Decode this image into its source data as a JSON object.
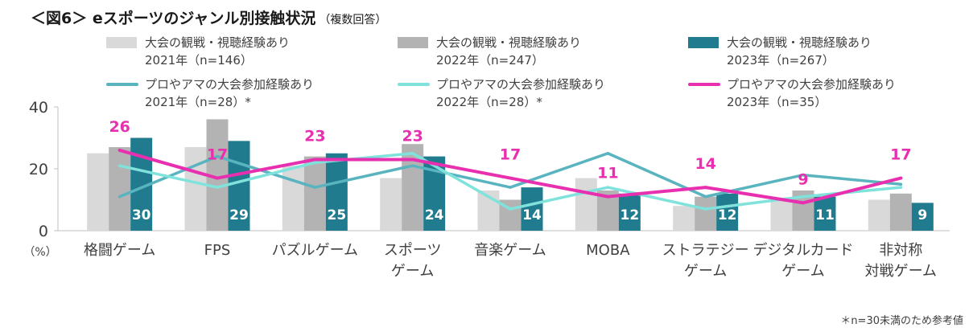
{
  "title": "＜図6＞ eスポーツのジャンル別接触状況",
  "title_note": "（複数回答）",
  "footnote": "＊n=30未満のため参考値",
  "chart_data": {
    "type": "bar+line",
    "ylabel": "（%）",
    "ylim": [
      0,
      40
    ],
    "yticks": [
      0,
      20,
      40
    ],
    "categories": [
      [
        "格闘ゲーム"
      ],
      [
        "FPS"
      ],
      [
        "パズルゲーム"
      ],
      [
        "スポーツ",
        "ゲーム"
      ],
      [
        "音楽ゲーム"
      ],
      [
        "MOBA"
      ],
      [
        "ストラテジー",
        "ゲーム"
      ],
      [
        "デジタルカード",
        "ゲーム"
      ],
      [
        "非対称",
        "対戦ゲーム"
      ]
    ],
    "bar_series": [
      {
        "name": "大会の観戦・視聴経験あり",
        "year": "2021年（n=146）",
        "color": "#d9d9d9",
        "values": [
          25,
          27,
          21,
          17,
          13,
          17,
          8,
          10,
          10
        ],
        "labels": [
          null,
          null,
          null,
          null,
          null,
          null,
          null,
          null,
          null
        ]
      },
      {
        "name": "大会の観戦・視聴経験あり",
        "year": "2022年（n=247）",
        "color": "#b3b3b3",
        "values": [
          27,
          36,
          24,
          28,
          10,
          13,
          11,
          13,
          12
        ],
        "labels": [
          null,
          null,
          null,
          null,
          null,
          null,
          null,
          null,
          null
        ]
      },
      {
        "name": "大会の観戦・視聴経験あり",
        "year": "2023年（n=267）",
        "color": "#217b8f",
        "values": [
          30,
          29,
          25,
          24,
          14,
          12,
          12,
          11,
          9
        ],
        "labels": [
          "30",
          "29",
          "25",
          "24",
          "14",
          "12",
          "12",
          "11",
          "9"
        ]
      }
    ],
    "line_series": [
      {
        "name": "プロやアマの大会参加経験あり",
        "year": "2021年（n=28）*",
        "color": "#5ab4bf",
        "values": [
          11,
          24,
          14,
          21,
          14,
          25,
          11,
          18,
          15
        ],
        "labels": [
          null,
          null,
          null,
          null,
          null,
          null,
          null,
          null,
          null
        ]
      },
      {
        "name": "プロやアマの大会参加経験あり",
        "year": "2022年（n=28）*",
        "color": "#7fe3dc",
        "values": [
          21,
          14,
          22,
          25,
          7,
          14,
          7,
          11,
          14
        ],
        "labels": [
          null,
          null,
          null,
          null,
          null,
          null,
          null,
          null,
          null
        ]
      },
      {
        "name": "プロやアマの大会参加経験あり",
        "year": "2023年（n=35）",
        "color": "#e82fb0",
        "values": [
          26,
          17,
          23,
          23,
          17,
          11,
          14,
          9,
          17
        ],
        "labels": [
          "26",
          "17",
          "23",
          "23",
          "17",
          "11",
          "14",
          "9",
          "17"
        ]
      }
    ]
  }
}
